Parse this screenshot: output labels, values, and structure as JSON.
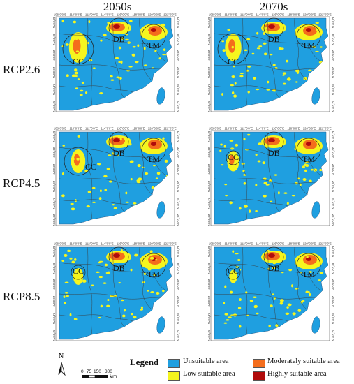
{
  "columns": [
    "2050s",
    "2070s"
  ],
  "rows": [
    "RCP2.6",
    "RCP4.5",
    "RCP8.5"
  ],
  "ticks": {
    "top": [
      "108°0'0\"E",
      "110°0'0\"E",
      "112°0'0\"E",
      "114°0'0\"E",
      "116°0'0\"E",
      "118°0'0\"E",
      "120°0'0\"E",
      "122°0'0\"E"
    ],
    "side": [
      "32°0'0\"N",
      "30°0'0\"N",
      "28°0'0\"N",
      "26°0'0\"N",
      "24°0'0\"N",
      "22°0'0\"N"
    ]
  },
  "regions": {
    "cc": "CC",
    "db": "DB",
    "tm": "TM"
  },
  "legend": {
    "title": "Legend",
    "items": [
      {
        "label": "Unsuitable area",
        "color": "#1f9fe0"
      },
      {
        "label": "Low suitable area",
        "color": "#f5f51e"
      },
      {
        "label": "Moderately suitable area",
        "color": "#f46d1c"
      },
      {
        "label": "Highly suitable area",
        "color": "#b00b0b"
      }
    ]
  },
  "scale_bar": {
    "labels": [
      "0",
      "75",
      "150",
      "300"
    ],
    "unit": "km"
  },
  "north_arrow": {
    "label": "N"
  },
  "colors": {
    "ocean": "#ffffff",
    "land": "#1f9fe0",
    "boundary": "#3a3a3a"
  }
}
